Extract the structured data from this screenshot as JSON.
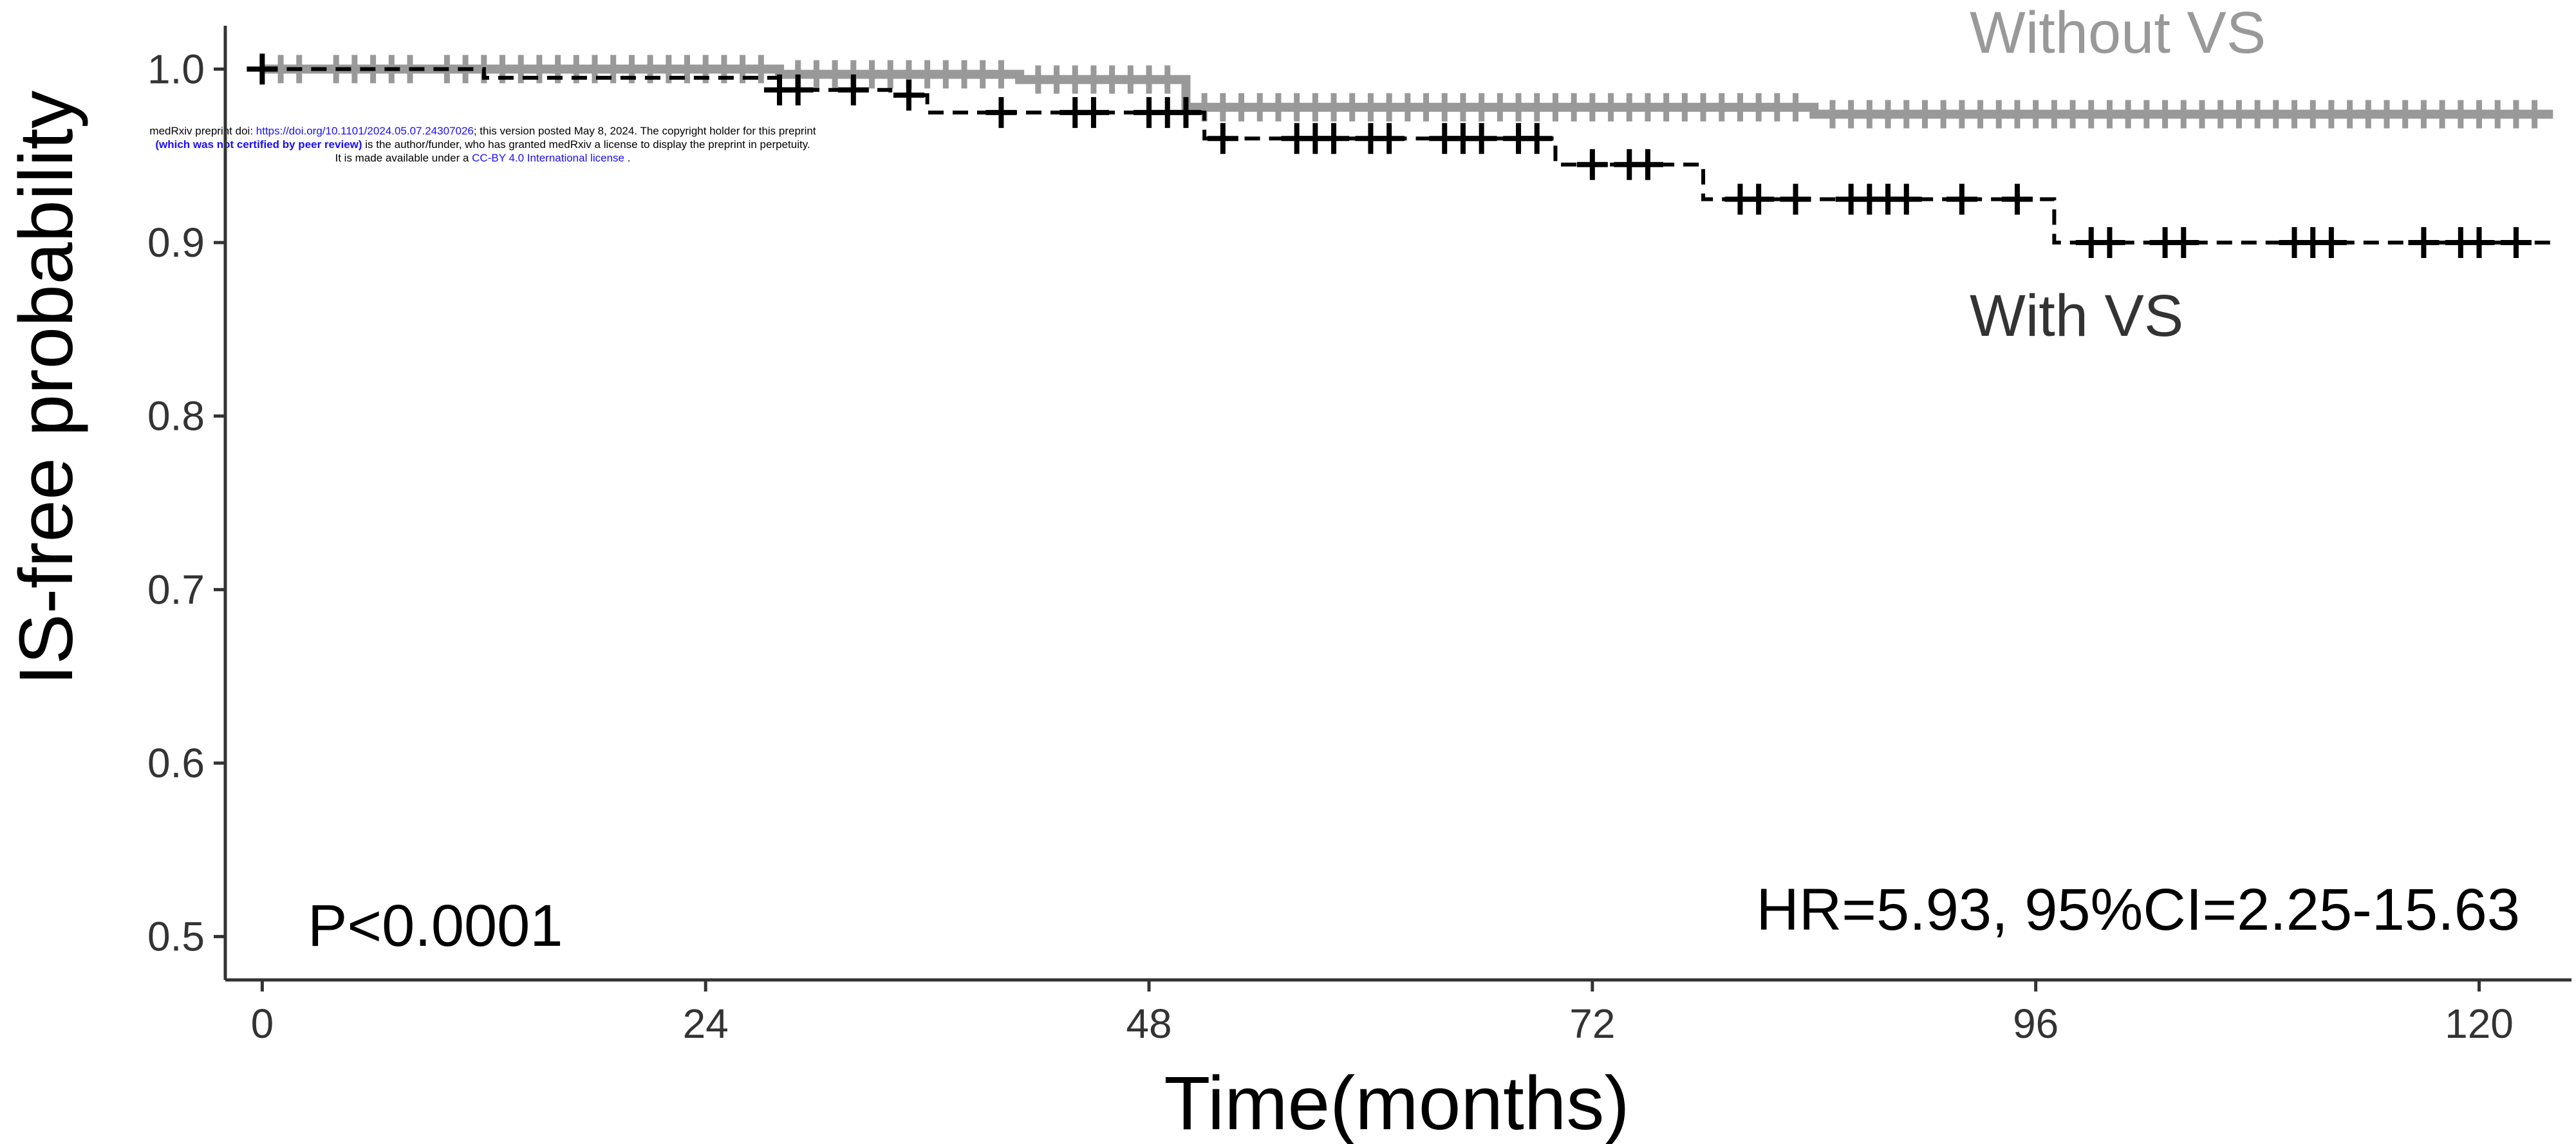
{
  "banner": {
    "line1_a": "medRxiv preprint doi: ",
    "line1_link": "https://doi.org/10.1101/2024.05.07.24307026",
    "line1_b": "; this version posted May 8, 2024. The copyright holder for this preprint",
    "line2_bold": "(which was not certified by peer review)",
    "line2_b": " is the author/funder, who has granted medRxiv a license to display the preprint in perpetuity.",
    "line3_a": "It is made available under a ",
    "line3_link": "CC-BY 4.0 International license",
    "line3_b": " ."
  },
  "colors": {
    "with_vs": "#000000",
    "without_vs": "#999999",
    "axis": "#333333",
    "banner_link": "#1a0dff"
  },
  "chart_data": {
    "type": "line",
    "title": "",
    "xlabel": "Time(months)",
    "ylabel": "IS-free probability",
    "xlim": [
      -2,
      125
    ],
    "ylim": [
      0.475,
      1.025
    ],
    "xticks": [
      0,
      24,
      48,
      72,
      96,
      120
    ],
    "yticks": [
      0.5,
      0.6,
      0.7,
      0.8,
      0.9,
      1.0
    ],
    "ytick_labels": [
      "0.5",
      "0.6",
      "0.7",
      "0.8",
      "0.9",
      "1.0"
    ],
    "grid": false,
    "series": [
      {
        "name": "Without VS",
        "style": "solid",
        "steps": [
          [
            0,
            1.0
          ],
          [
            28,
            0.997
          ],
          [
            41,
            0.994
          ],
          [
            50,
            0.978
          ],
          [
            84,
            0.974
          ],
          [
            124,
            0.974
          ]
        ],
        "censor_times": [
          1,
          2,
          4,
          5,
          6,
          7,
          8,
          10,
          11,
          12,
          13,
          14,
          15,
          16,
          17,
          18,
          19,
          20,
          21,
          22,
          23,
          24,
          25,
          26,
          27,
          29,
          30,
          31,
          32,
          33,
          34,
          35,
          36,
          37,
          38,
          39,
          40,
          42,
          43,
          44,
          45,
          46,
          47,
          48,
          49,
          51,
          52,
          53,
          54,
          55,
          56,
          57,
          58,
          59,
          60,
          61,
          62,
          63,
          64,
          65,
          66,
          67,
          68,
          69,
          70,
          71,
          72,
          73,
          74,
          75,
          76,
          77,
          78,
          79,
          80,
          81,
          82,
          83,
          85,
          86,
          87,
          88,
          89,
          90,
          91,
          92,
          93,
          94,
          95,
          96,
          97,
          98,
          99,
          100,
          101,
          102,
          103,
          104,
          105,
          106,
          107,
          108,
          109,
          110,
          111,
          112,
          113,
          114,
          115,
          116,
          117,
          118,
          119,
          120,
          121,
          122,
          123
        ]
      },
      {
        "name": "With VS",
        "style": "dashed",
        "steps": [
          [
            0,
            1.0
          ],
          [
            12,
            0.995
          ],
          [
            28,
            0.988
          ],
          [
            34,
            0.985
          ],
          [
            36,
            0.975
          ],
          [
            51,
            0.96
          ],
          [
            70,
            0.945
          ],
          [
            78,
            0.925
          ],
          [
            97,
            0.9
          ],
          [
            124,
            0.9
          ]
        ],
        "censor_times": [
          0,
          28,
          29,
          32,
          35,
          40,
          44,
          45,
          48,
          49,
          50,
          52,
          56,
          57,
          58,
          60,
          61,
          64,
          65,
          66,
          68,
          69,
          72,
          74,
          75,
          80,
          81,
          83,
          86,
          87,
          88,
          89,
          92,
          95,
          99,
          100,
          103,
          104,
          110,
          111,
          112,
          117,
          119,
          120,
          122
        ]
      }
    ],
    "annotations": {
      "p_value": "P<0.0001",
      "hr": "HR=5.93, 95%CI=2.25-15.63"
    }
  }
}
